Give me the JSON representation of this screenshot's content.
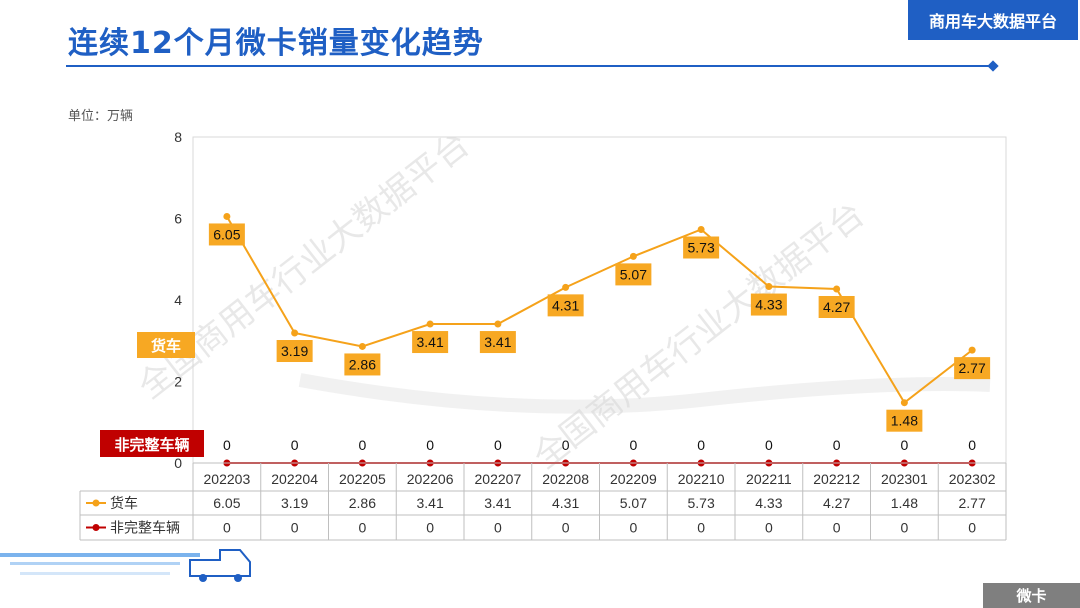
{
  "header": {
    "title": "连续12个月微卡销量变化趋势",
    "brand": "商用车大数据平台",
    "unit": "单位：万辆",
    "footer_tag": "微卡",
    "watermark": "全国商用车行业大数据平台"
  },
  "colors": {
    "accent": "#1f5fc4",
    "truck": "#f5a21a",
    "truck_label_bg": "#f7a823",
    "incomplete": "#c00000"
  },
  "chart_data": {
    "type": "line",
    "categories": [
      "202203",
      "202204",
      "202205",
      "202206",
      "202207",
      "202208",
      "202209",
      "202210",
      "202211",
      "202212",
      "202301",
      "202302"
    ],
    "series": [
      {
        "name": "货车",
        "values": [
          6.05,
          3.19,
          2.86,
          3.41,
          3.41,
          4.31,
          5.07,
          5.73,
          4.33,
          4.27,
          1.48,
          2.77
        ]
      },
      {
        "name": "非完整车辆",
        "values": [
          0,
          0,
          0,
          0,
          0,
          0,
          0,
          0,
          0,
          0,
          0,
          0
        ]
      }
    ],
    "yticks": [
      0,
      2,
      4,
      6,
      8
    ],
    "ylim": [
      0,
      8
    ],
    "grid": false,
    "legend": "data-table"
  }
}
